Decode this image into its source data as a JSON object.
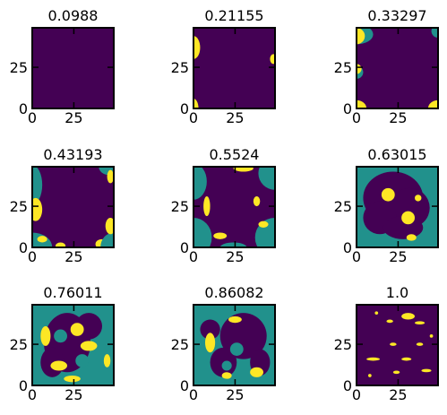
{
  "chart_data": {
    "type": "heatmap",
    "colors": {
      "background": "#440154",
      "mid": "#21918c",
      "high": "#fde725",
      "axis": "#000000"
    },
    "shared_axes": {
      "xlim": [
        0,
        49
      ],
      "ylim": [
        0,
        49
      ],
      "x_ticks": [
        0,
        25
      ],
      "y_ticks": [
        0,
        25
      ]
    },
    "panels": [
      {
        "title": "0.0988",
        "xlabels": [
          "0",
          "25"
        ],
        "ylabels": [
          "0",
          "25"
        ],
        "patches": []
      },
      {
        "title": "0.21155",
        "xlabels": [
          "0",
          "25"
        ],
        "ylabels": [
          "0",
          "25"
        ],
        "patches": [
          {
            "color": "high",
            "x": 0,
            "y": 37,
            "rx": 4,
            "ry": 7
          },
          {
            "color": "high",
            "x": 0,
            "y": 0,
            "rx": 3,
            "ry": 6
          },
          {
            "color": "high",
            "x": 48,
            "y": 30,
            "rx": 2,
            "ry": 3
          }
        ]
      },
      {
        "title": "0.33297",
        "xlabels": [
          "0",
          "25"
        ],
        "ylabels": [
          "0",
          "25"
        ],
        "patches": [
          {
            "color": "mid",
            "x": 0,
            "y": 45,
            "rx": 10,
            "ry": 6
          },
          {
            "color": "mid",
            "x": 0,
            "y": 22,
            "rx": 4,
            "ry": 4
          },
          {
            "color": "high",
            "x": 0,
            "y": 44,
            "rx": 5,
            "ry": 5
          },
          {
            "color": "high",
            "x": 0,
            "y": 24,
            "rx": 3,
            "ry": 3
          },
          {
            "color": "high",
            "x": 0,
            "y": 0,
            "rx": 6,
            "ry": 5
          },
          {
            "color": "high",
            "x": 49,
            "y": 0,
            "rx": 6,
            "ry": 5
          },
          {
            "color": "mid",
            "x": 49,
            "y": 47,
            "rx": 4,
            "ry": 4
          }
        ]
      },
      {
        "title": "0.43193",
        "xlabels": [
          "0",
          "25"
        ],
        "ylabels": [
          "0",
          "25"
        ],
        "patches": [
          {
            "color": "mid",
            "x": 0,
            "y": 38,
            "rx": 6,
            "ry": 12
          },
          {
            "color": "high",
            "x": 2,
            "y": 23,
            "rx": 4,
            "ry": 7
          },
          {
            "color": "mid",
            "x": 0,
            "y": 0,
            "rx": 12,
            "ry": 9
          },
          {
            "color": "high",
            "x": 17,
            "y": 1,
            "rx": 3,
            "ry": 2
          },
          {
            "color": "high",
            "x": 6,
            "y": 5,
            "rx": 3,
            "ry": 2
          },
          {
            "color": "high",
            "x": 42,
            "y": 2,
            "rx": 4,
            "ry": 3
          },
          {
            "color": "mid",
            "x": 49,
            "y": 0,
            "rx": 8,
            "ry": 9
          },
          {
            "color": "high",
            "x": 47,
            "y": 13,
            "rx": 3,
            "ry": 5
          },
          {
            "color": "mid",
            "x": 46,
            "y": 49,
            "rx": 6,
            "ry": 5
          },
          {
            "color": "high",
            "x": 47,
            "y": 43,
            "rx": 2,
            "ry": 4
          }
        ]
      },
      {
        "title": "0.5524",
        "xlabels": [
          "0",
          "25"
        ],
        "ylabels": [
          "0",
          "25"
        ],
        "patches": [
          {
            "color": "mid",
            "x": 0,
            "y": 40,
            "rx": 8,
            "ry": 11
          },
          {
            "color": "mid",
            "x": 0,
            "y": 6,
            "rx": 11,
            "ry": 12
          },
          {
            "color": "mid",
            "x": 49,
            "y": 6,
            "rx": 12,
            "ry": 12
          },
          {
            "color": "mid",
            "x": 49,
            "y": 45,
            "rx": 10,
            "ry": 10
          },
          {
            "color": "mid",
            "x": 24,
            "y": 0,
            "rx": 8,
            "ry": 3
          },
          {
            "color": "high",
            "x": 8,
            "y": 25,
            "rx": 2,
            "ry": 6
          },
          {
            "color": "high",
            "x": 16,
            "y": 7,
            "rx": 4,
            "ry": 2
          },
          {
            "color": "high",
            "x": 30,
            "y": 48,
            "rx": 6,
            "ry": 2
          },
          {
            "color": "high",
            "x": 42,
            "y": 14,
            "rx": 3,
            "ry": 2
          },
          {
            "color": "high",
            "x": 38,
            "y": 28,
            "rx": 2,
            "ry": 3
          }
        ]
      },
      {
        "title": "0.63015",
        "xlabels": [
          "0",
          "25"
        ],
        "ylabels": [
          "0",
          "25"
        ],
        "patches": [
          {
            "color": "mid",
            "x": 24,
            "y": 24,
            "rx": 40,
            "ry": 40
          },
          {
            "color": "bg",
            "x": 22,
            "y": 30,
            "rx": 18,
            "ry": 16
          },
          {
            "color": "bg",
            "x": 32,
            "y": 24,
            "rx": 12,
            "ry": 12
          },
          {
            "color": "bg",
            "x": 14,
            "y": 18,
            "rx": 10,
            "ry": 10
          },
          {
            "color": "bg",
            "x": 28,
            "y": 12,
            "rx": 12,
            "ry": 7
          },
          {
            "color": "high",
            "x": 19,
            "y": 32,
            "rx": 4,
            "ry": 4
          },
          {
            "color": "high",
            "x": 31,
            "y": 18,
            "rx": 4,
            "ry": 4
          },
          {
            "color": "high",
            "x": 37,
            "y": 30,
            "rx": 2,
            "ry": 2
          },
          {
            "color": "high",
            "x": 33,
            "y": 6,
            "rx": 3,
            "ry": 2
          }
        ]
      },
      {
        "title": "0.76011",
        "xlabels": [
          "0",
          "25"
        ],
        "ylabels": [
          "0",
          "25"
        ],
        "patches": [
          {
            "color": "mid",
            "x": 24,
            "y": 24,
            "rx": 40,
            "ry": 40
          },
          {
            "color": "bg",
            "x": 21,
            "y": 26,
            "rx": 14,
            "ry": 18
          },
          {
            "color": "bg",
            "x": 12,
            "y": 14,
            "rx": 7,
            "ry": 9
          },
          {
            "color": "bg",
            "x": 34,
            "y": 36,
            "rx": 8,
            "ry": 8
          },
          {
            "color": "high",
            "x": 16,
            "y": 12,
            "rx": 5,
            "ry": 3
          },
          {
            "color": "high",
            "x": 27,
            "y": 34,
            "rx": 4,
            "ry": 4
          },
          {
            "color": "high",
            "x": 8,
            "y": 30,
            "rx": 3,
            "ry": 6
          },
          {
            "color": "high",
            "x": 34,
            "y": 24,
            "rx": 5,
            "ry": 3
          },
          {
            "color": "high",
            "x": 24,
            "y": 4,
            "rx": 5,
            "ry": 2
          },
          {
            "color": "mid",
            "x": 17,
            "y": 30,
            "rx": 4,
            "ry": 4
          },
          {
            "color": "mid",
            "x": 30,
            "y": 15,
            "rx": 4,
            "ry": 4
          },
          {
            "color": "high",
            "x": 45,
            "y": 15,
            "rx": 2,
            "ry": 4
          }
        ]
      },
      {
        "title": "0.86082",
        "xlabels": [
          "0",
          "25"
        ],
        "ylabels": [
          "0",
          "25"
        ],
        "patches": [
          {
            "color": "mid",
            "x": 24,
            "y": 24,
            "rx": 40,
            "ry": 40
          },
          {
            "color": "bg",
            "x": 30,
            "y": 30,
            "rx": 14,
            "ry": 14
          },
          {
            "color": "bg",
            "x": 18,
            "y": 14,
            "rx": 8,
            "ry": 9
          },
          {
            "color": "bg",
            "x": 40,
            "y": 14,
            "rx": 6,
            "ry": 8
          },
          {
            "color": "bg",
            "x": 10,
            "y": 34,
            "rx": 6,
            "ry": 6
          },
          {
            "color": "high",
            "x": 10,
            "y": 26,
            "rx": 3,
            "ry": 6
          },
          {
            "color": "high",
            "x": 25,
            "y": 40,
            "rx": 4,
            "ry": 2
          },
          {
            "color": "high",
            "x": 38,
            "y": 8,
            "rx": 4,
            "ry": 3
          },
          {
            "color": "mid",
            "x": 26,
            "y": 22,
            "rx": 4,
            "ry": 4
          },
          {
            "color": "mid",
            "x": 20,
            "y": 12,
            "rx": 3,
            "ry": 3
          },
          {
            "color": "high",
            "x": 20,
            "y": 6,
            "rx": 3,
            "ry": 2
          }
        ]
      },
      {
        "title": "1.0",
        "xlabels": [
          "0",
          "25"
        ],
        "ylabels": [
          "0",
          "25"
        ],
        "patches": [
          {
            "color": "high",
            "x": 31,
            "y": 42,
            "rx": 4,
            "ry": 2
          },
          {
            "color": "high",
            "x": 20,
            "y": 39,
            "rx": 2,
            "ry": 1
          },
          {
            "color": "high",
            "x": 12,
            "y": 44,
            "rx": 1,
            "ry": 1
          },
          {
            "color": "high",
            "x": 38,
            "y": 38,
            "rx": 3,
            "ry": 1
          },
          {
            "color": "high",
            "x": 22,
            "y": 25,
            "rx": 2,
            "ry": 1
          },
          {
            "color": "high",
            "x": 38,
            "y": 25,
            "rx": 2,
            "ry": 1
          },
          {
            "color": "high",
            "x": 10,
            "y": 16,
            "rx": 4,
            "ry": 1
          },
          {
            "color": "high",
            "x": 30,
            "y": 16,
            "rx": 3,
            "ry": 1
          },
          {
            "color": "high",
            "x": 42,
            "y": 9,
            "rx": 3,
            "ry": 1
          },
          {
            "color": "high",
            "x": 24,
            "y": 8,
            "rx": 2,
            "ry": 1
          },
          {
            "color": "high",
            "x": 8,
            "y": 6,
            "rx": 1,
            "ry": 1
          },
          {
            "color": "high",
            "x": 45,
            "y": 30,
            "rx": 1,
            "ry": 1
          }
        ]
      }
    ]
  }
}
